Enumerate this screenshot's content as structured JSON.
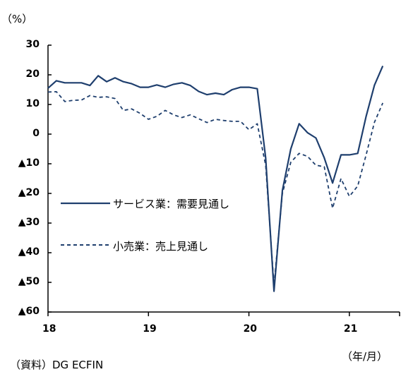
{
  "chart_data": {
    "type": "line",
    "y_unit": "（%）",
    "x_unit": "（年/月）",
    "source": "（資料）DG ECFIN",
    "ylim": [
      -60,
      30
    ],
    "y_ticks": [
      {
        "value": 30,
        "label": "30"
      },
      {
        "value": 20,
        "label": "20"
      },
      {
        "value": 10,
        "label": "10"
      },
      {
        "value": 0,
        "label": "0"
      },
      {
        "value": -10,
        "label": "▲10"
      },
      {
        "value": -20,
        "label": "▲20"
      },
      {
        "value": -30,
        "label": "▲30"
      },
      {
        "value": -40,
        "label": "▲40"
      },
      {
        "value": -50,
        "label": "▲50"
      },
      {
        "value": -60,
        "label": "▲60"
      }
    ],
    "x_ticks": [
      {
        "value": 2018.0,
        "label": "18"
      },
      {
        "value": 2019.0,
        "label": "19"
      },
      {
        "value": 2020.0,
        "label": "20"
      },
      {
        "value": 2021.0,
        "label": "21"
      }
    ],
    "xlim": [
      2018.0,
      2021.5
    ],
    "grid": false,
    "legend_position": "center-left",
    "series": [
      {
        "name": "サービス業：需要見通し",
        "style": "solid",
        "color": "#1f3f6e",
        "x": [
          2018.0,
          2018.083,
          2018.167,
          2018.25,
          2018.333,
          2018.417,
          2018.5,
          2018.583,
          2018.667,
          2018.75,
          2018.833,
          2018.917,
          2019.0,
          2019.083,
          2019.167,
          2019.25,
          2019.333,
          2019.417,
          2019.5,
          2019.583,
          2019.667,
          2019.75,
          2019.833,
          2019.917,
          2020.0,
          2020.083,
          2020.167,
          2020.25,
          2020.333,
          2020.417,
          2020.5,
          2020.583,
          2020.667,
          2020.75,
          2020.833,
          2020.917,
          2021.0,
          2021.083,
          2021.167,
          2021.25,
          2021.333
        ],
        "values": [
          15.5,
          18,
          17.3,
          17.3,
          17.3,
          16.4,
          19.7,
          17.7,
          19,
          17.7,
          17,
          15.8,
          15.8,
          16.6,
          15.8,
          16.8,
          17.3,
          16.4,
          14.4,
          13.3,
          13.8,
          13.3,
          15,
          15.8,
          15.8,
          15.3,
          -8,
          -53,
          -19,
          -5,
          3.5,
          0.5,
          -1.3,
          -8,
          -16.5,
          -7,
          -7,
          -6.5,
          6,
          16.5,
          23
        ]
      },
      {
        "name": "小売業：売上見通し",
        "style": "dashed",
        "color": "#1f3f6e",
        "x": [
          2018.0,
          2018.083,
          2018.167,
          2018.25,
          2018.333,
          2018.417,
          2018.5,
          2018.583,
          2018.667,
          2018.75,
          2018.833,
          2018.917,
          2019.0,
          2019.083,
          2019.167,
          2019.25,
          2019.333,
          2019.417,
          2019.5,
          2019.583,
          2019.667,
          2019.75,
          2019.833,
          2019.917,
          2020.0,
          2020.083,
          2020.167,
          2020.25,
          2020.333,
          2020.417,
          2020.5,
          2020.583,
          2020.667,
          2020.75,
          2020.833,
          2020.917,
          2021.0,
          2021.083,
          2021.167,
          2021.25,
          2021.333
        ],
        "values": [
          14.2,
          14.3,
          11,
          11.4,
          11.5,
          13,
          12.4,
          12.6,
          12,
          8,
          8.5,
          7,
          5,
          6,
          8,
          6.5,
          5.6,
          6.5,
          5.2,
          3.9,
          5,
          4.6,
          4.3,
          4.3,
          1.5,
          3.5,
          -10.5,
          -51,
          -20,
          -9.5,
          -6.5,
          -7.5,
          -10.5,
          -11,
          -25,
          -15,
          -21,
          -17.5,
          -7,
          4,
          10.5
        ]
      }
    ]
  }
}
